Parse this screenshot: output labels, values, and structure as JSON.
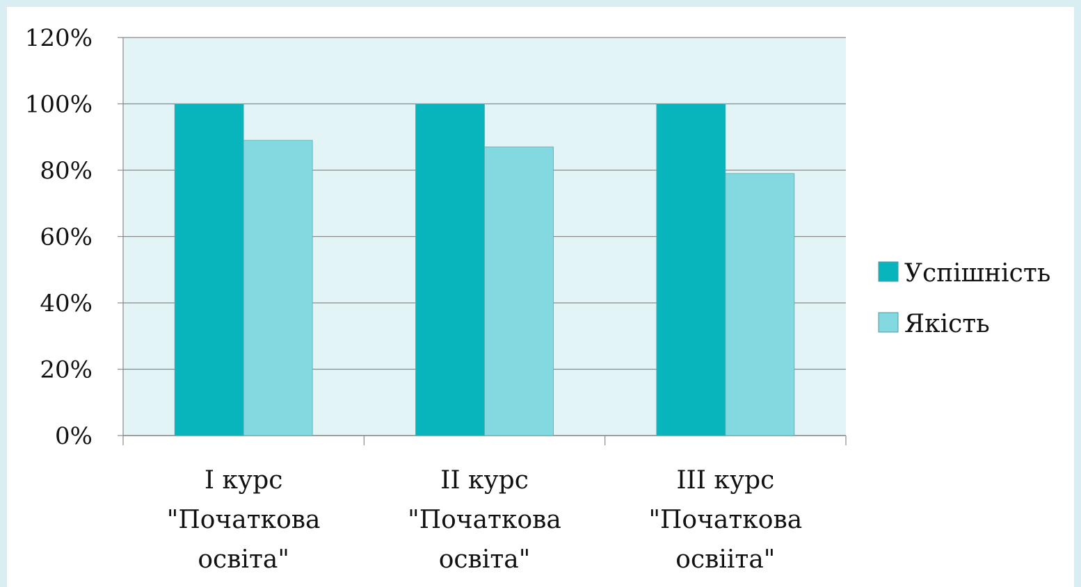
{
  "chart_data": {
    "type": "bar",
    "title": "",
    "xlabel": "",
    "ylabel": "",
    "categories": [
      [
        "I курс",
        "\"Початкова",
        "освіта\""
      ],
      [
        "II курс",
        "\"Початкова",
        "освіта\""
      ],
      [
        "III курс",
        "\"Початкова",
        "освіiта\""
      ]
    ],
    "series": [
      {
        "name": "Успішність",
        "values": [
          100,
          100,
          100
        ],
        "color": "#08b5bc"
      },
      {
        "name": "Якість",
        "values": [
          89,
          87,
          79
        ],
        "color": "#84d9e1"
      }
    ],
    "ylim": [
      0,
      120
    ],
    "yticks": [
      0,
      20,
      40,
      60,
      80,
      100,
      120
    ],
    "ytick_labels": [
      "0%",
      "20%",
      "40%",
      "60%",
      "80%",
      "100%",
      "120%"
    ],
    "grid": true,
    "legend_position": "right",
    "plot_background": "#e3f4f7"
  }
}
